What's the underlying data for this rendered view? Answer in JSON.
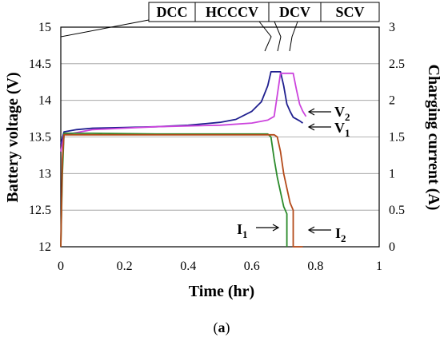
{
  "chart_data": {
    "type": "line",
    "xlabel": "Time (hr)",
    "ylabel": "Battery voltage (V)",
    "y2label": "Charging current (A)",
    "caption_prefix": "(",
    "caption_letter": "a",
    "caption_suffix": ")",
    "xlim": [
      0,
      1
    ],
    "ylim": [
      12,
      15
    ],
    "y2lim": [
      0,
      3
    ],
    "grid": true,
    "x_ticks": [
      "0",
      "0.2",
      "0.4",
      "0.6",
      "0.8",
      "1"
    ],
    "y_ticks": [
      "12",
      "12.5",
      "13",
      "13.5",
      "14",
      "14.5",
      "15"
    ],
    "y2_ticks": [
      "0",
      "0.5",
      "1",
      "1.5",
      "2",
      "2.5",
      "3"
    ],
    "phases": [
      {
        "label": "DCC",
        "x": 0.0
      },
      {
        "label": "HCCCV",
        "x": 0.66
      },
      {
        "label": "DCV",
        "x": 0.685
      },
      {
        "label": "SCV",
        "x": 0.715
      }
    ],
    "series_labels": [
      {
        "main": "V",
        "sub": "2"
      },
      {
        "main": "V",
        "sub": "1"
      },
      {
        "main": "I",
        "sub": "1"
      },
      {
        "main": "I",
        "sub": "2"
      }
    ],
    "series": [
      {
        "axis": "left",
        "color": "#1f1f8f",
        "x": [
          0.0,
          0.01,
          0.05,
          0.1,
          0.2,
          0.3,
          0.4,
          0.5,
          0.55,
          0.6,
          0.63,
          0.65,
          0.66,
          0.67,
          0.69,
          0.7,
          0.71,
          0.72,
          0.73,
          0.75,
          0.76
        ],
        "y": [
          13.4,
          13.57,
          13.6,
          13.62,
          13.63,
          13.64,
          13.66,
          13.7,
          13.74,
          13.85,
          13.98,
          14.2,
          14.39,
          14.39,
          14.39,
          14.2,
          13.95,
          13.85,
          13.77,
          13.72,
          13.69
        ]
      },
      {
        "axis": "left",
        "color": "#cc44dd",
        "x": [
          0.0,
          0.01,
          0.05,
          0.1,
          0.2,
          0.3,
          0.4,
          0.5,
          0.6,
          0.65,
          0.67,
          0.69,
          0.7,
          0.71,
          0.72,
          0.73,
          0.74,
          0.75,
          0.76,
          0.77
        ],
        "y": [
          13.3,
          13.53,
          13.56,
          13.6,
          13.62,
          13.64,
          13.65,
          13.66,
          13.69,
          13.73,
          13.78,
          14.37,
          14.37,
          14.37,
          14.37,
          14.37,
          14.15,
          13.95,
          13.85,
          13.78
        ]
      },
      {
        "axis": "right",
        "color": "#2a8a2a",
        "x": [
          0.0,
          0.005,
          0.01,
          0.1,
          0.3,
          0.5,
          0.6,
          0.65,
          0.66,
          0.67,
          0.68,
          0.69,
          0.7,
          0.705,
          0.71,
          0.71
        ],
        "y": [
          0.0,
          1.0,
          1.55,
          1.55,
          1.54,
          1.54,
          1.54,
          1.54,
          1.5,
          1.2,
          0.95,
          0.75,
          0.55,
          0.5,
          0.45,
          0.0
        ]
      },
      {
        "axis": "right",
        "color": "#b44a1a",
        "x": [
          0.0,
          0.005,
          0.01,
          0.1,
          0.3,
          0.5,
          0.6,
          0.67,
          0.68,
          0.69,
          0.7,
          0.71,
          0.72,
          0.73,
          0.73,
          0.76
        ],
        "y": [
          0.0,
          1.2,
          1.53,
          1.53,
          1.53,
          1.53,
          1.53,
          1.53,
          1.5,
          1.3,
          1.0,
          0.8,
          0.6,
          0.5,
          0.0,
          0.0
        ]
      }
    ]
  }
}
